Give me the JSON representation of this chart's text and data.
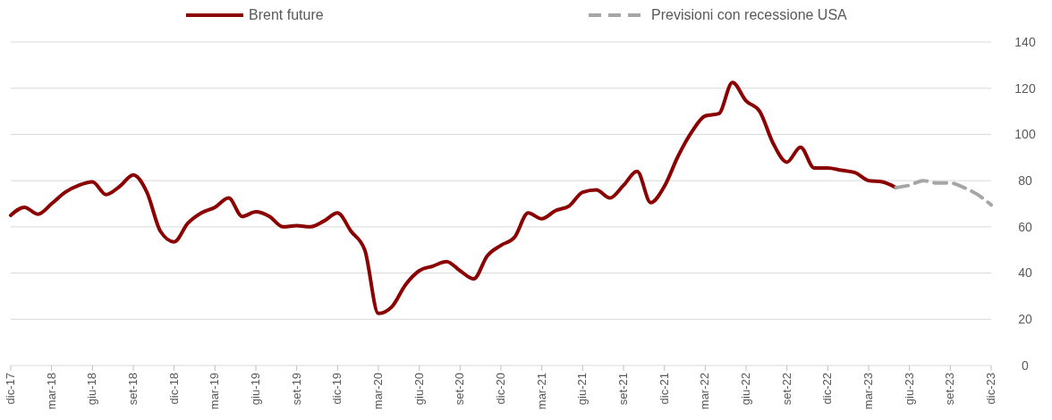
{
  "chart_data": {
    "type": "line",
    "categories": [
      "dic-17",
      null,
      null,
      "mar-18",
      null,
      null,
      "giu-18",
      null,
      null,
      "set-18",
      null,
      null,
      "dic-18",
      null,
      null,
      "mar-19",
      null,
      null,
      "giu-19",
      null,
      null,
      "set-19",
      null,
      null,
      "dic-19",
      null,
      null,
      "mar-20",
      null,
      null,
      "giu-20",
      null,
      null,
      "set-20",
      null,
      null,
      "dic-20",
      null,
      null,
      "mar-21",
      null,
      null,
      "giu-21",
      null,
      null,
      "set-21",
      null,
      null,
      "dic-21",
      null,
      null,
      "mar-22",
      null,
      null,
      "giu-22",
      null,
      null,
      "set-22",
      null,
      null,
      "dic-22",
      null,
      null,
      "mar-23",
      null,
      null,
      "giu-23",
      null,
      null,
      "set-23",
      null,
      null,
      "dic-23"
    ],
    "series": [
      {
        "name": "Brent future",
        "color": "#8b0000",
        "line_style": "solid",
        "values": [
          65,
          68.5,
          65.5,
          70,
          75,
          78,
          79.5,
          74,
          77.5,
          82.5,
          75,
          58,
          53.5,
          61.5,
          66,
          68.5,
          72.5,
          64.5,
          66.5,
          64.5,
          60,
          60.5,
          60,
          62.5,
          66,
          58,
          50,
          22.5,
          25.5,
          35,
          41,
          43,
          45,
          41,
          37.5,
          47.5,
          52,
          55.5,
          66,
          63.5,
          67,
          69,
          75,
          76,
          72.5,
          78,
          84,
          70.5,
          77.5,
          90.5,
          101,
          108,
          109,
          122.5,
          114.5,
          110,
          96,
          88,
          94.5,
          85.5,
          85.5,
          84.5,
          83.5,
          80,
          79.5,
          77,
          null,
          null,
          null,
          null,
          null,
          null,
          null
        ]
      },
      {
        "name": "Previsioni con recessione USA",
        "color": "#a6a6a6",
        "line_style": "dashed",
        "values": [
          null,
          null,
          null,
          null,
          null,
          null,
          null,
          null,
          null,
          null,
          null,
          null,
          null,
          null,
          null,
          null,
          null,
          null,
          null,
          null,
          null,
          null,
          null,
          null,
          null,
          null,
          null,
          null,
          null,
          null,
          null,
          null,
          null,
          null,
          null,
          null,
          null,
          null,
          null,
          null,
          null,
          null,
          null,
          null,
          null,
          null,
          null,
          null,
          null,
          null,
          null,
          null,
          null,
          null,
          null,
          null,
          null,
          null,
          null,
          null,
          null,
          null,
          null,
          null,
          null,
          77,
          78,
          80,
          79,
          79,
          77,
          74,
          69.5
        ]
      }
    ],
    "ylim": [
      0,
      140
    ],
    "yticks": [
      0,
      20,
      40,
      60,
      80,
      100,
      120,
      140
    ],
    "grid": "y",
    "legend": "top"
  }
}
